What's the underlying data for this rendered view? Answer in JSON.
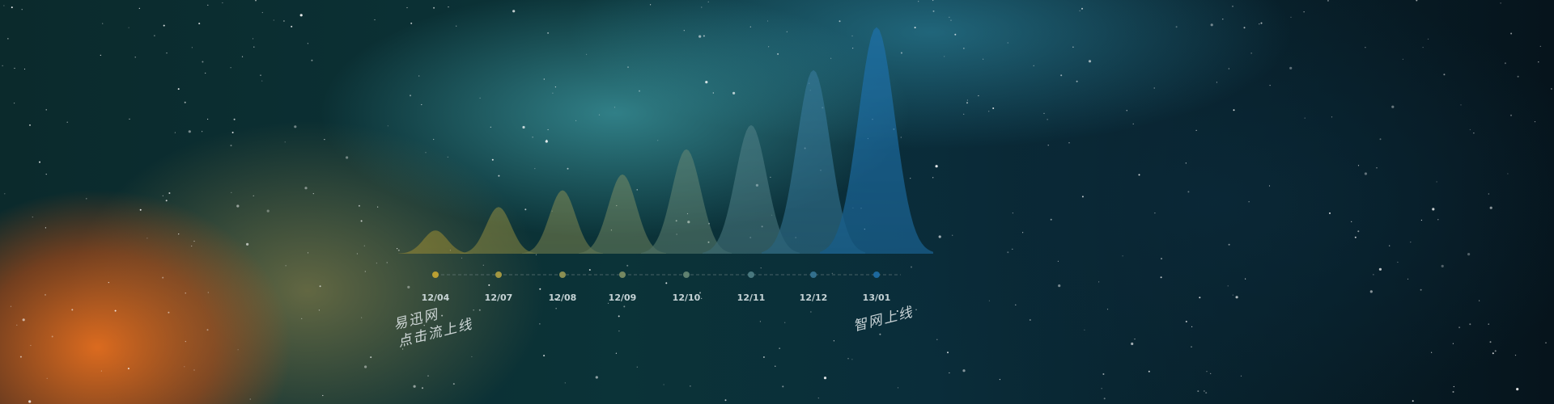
{
  "chart_data": {
    "type": "area",
    "title": "",
    "xlabel": "",
    "ylabel": "",
    "categories": [
      "12/04",
      "12/07",
      "12/08",
      "12/09",
      "12/10",
      "12/11",
      "12/12",
      "13/01"
    ],
    "values": [
      25,
      50,
      68,
      85,
      112,
      138,
      197,
      243
    ],
    "ylim": [
      0,
      260
    ],
    "grid": false,
    "legend": "none",
    "colors": {
      "start": "#c9a932",
      "end": "#1e6fa8",
      "dot_line": "#7a8a8c"
    },
    "annotations": [
      {
        "category": "12/04",
        "lines": [
          "易迅网",
          "点击流上线"
        ]
      },
      {
        "category": "13/01",
        "lines": [
          "智网上线"
        ]
      }
    ]
  }
}
